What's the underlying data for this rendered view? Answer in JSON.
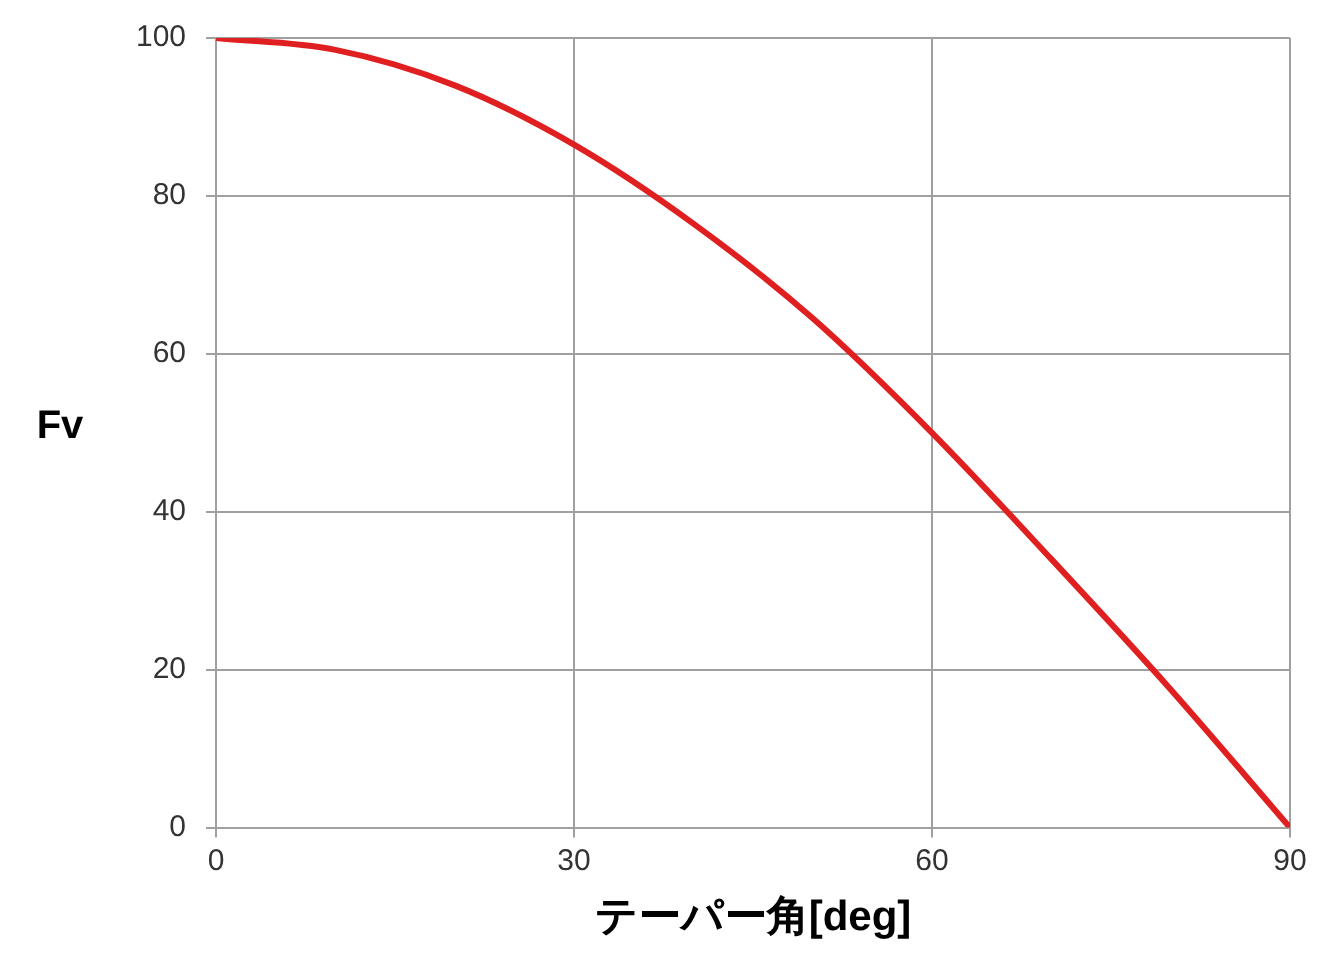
{
  "chart_data": {
    "type": "line",
    "xlabel": "テーパー角[deg]",
    "ylabel": "Fv",
    "x": [
      0,
      10,
      20,
      30,
      40,
      50,
      60,
      70,
      80,
      90
    ],
    "series": [
      {
        "color": "#e02020",
        "values": [
          100,
          98.5,
          94,
          86.5,
          76.5,
          64.5,
          50,
          34,
          17.5,
          0
        ]
      }
    ],
    "xlim": [
      0,
      90
    ],
    "xticks": [
      0,
      30,
      60,
      90
    ],
    "ylim": [
      0,
      100
    ],
    "yticks": [
      0,
      20,
      40,
      60,
      80,
      100
    ],
    "grid": true,
    "legend": false,
    "marker": "none",
    "line_style": "solid"
  }
}
